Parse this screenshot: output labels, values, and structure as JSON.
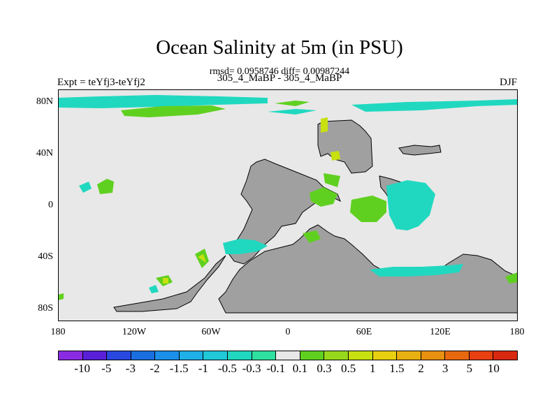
{
  "title": "Ocean Salinity at 5m (in PSU)",
  "stats": "rmsd= 0.0958746 diff= 0.00987244",
  "experiment_left": "Expt = teYfj3-teYfj2",
  "experiment_center": "305_4_MaBP - 305_4_MaBP",
  "season": "DJF",
  "map": {
    "lon_range": [
      -180,
      180
    ],
    "lat_range": [
      -90,
      90
    ],
    "x_ticks": [
      "180",
      "120W",
      "60W",
      "0",
      "60E",
      "120E",
      "180"
    ],
    "y_ticks": [
      "80N",
      "40N",
      "0",
      "40S",
      "80S"
    ],
    "land_color": "#a0a0a0",
    "ocean_color": "#e8e8e8"
  },
  "colorbar": {
    "labels": [
      "-10",
      "-5",
      "-3",
      "-2",
      "-1.5",
      "-1",
      "-0.5",
      "-0.3",
      "-0.1",
      "0.1",
      "0.3",
      "0.5",
      "1",
      "1.5",
      "2",
      "3",
      "5",
      "10"
    ],
    "colors": [
      "#8a2be2",
      "#5a20d8",
      "#2848e0",
      "#1a6fe0",
      "#1c8fe8",
      "#1fb0e8",
      "#20c8d8",
      "#20d8c0",
      "#30e0a0",
      "#e8e8e8",
      "#60d020",
      "#98d81c",
      "#c8e010",
      "#e8d010",
      "#e8b010",
      "#e89010",
      "#e86810",
      "#e84010",
      "#d82810"
    ]
  }
}
